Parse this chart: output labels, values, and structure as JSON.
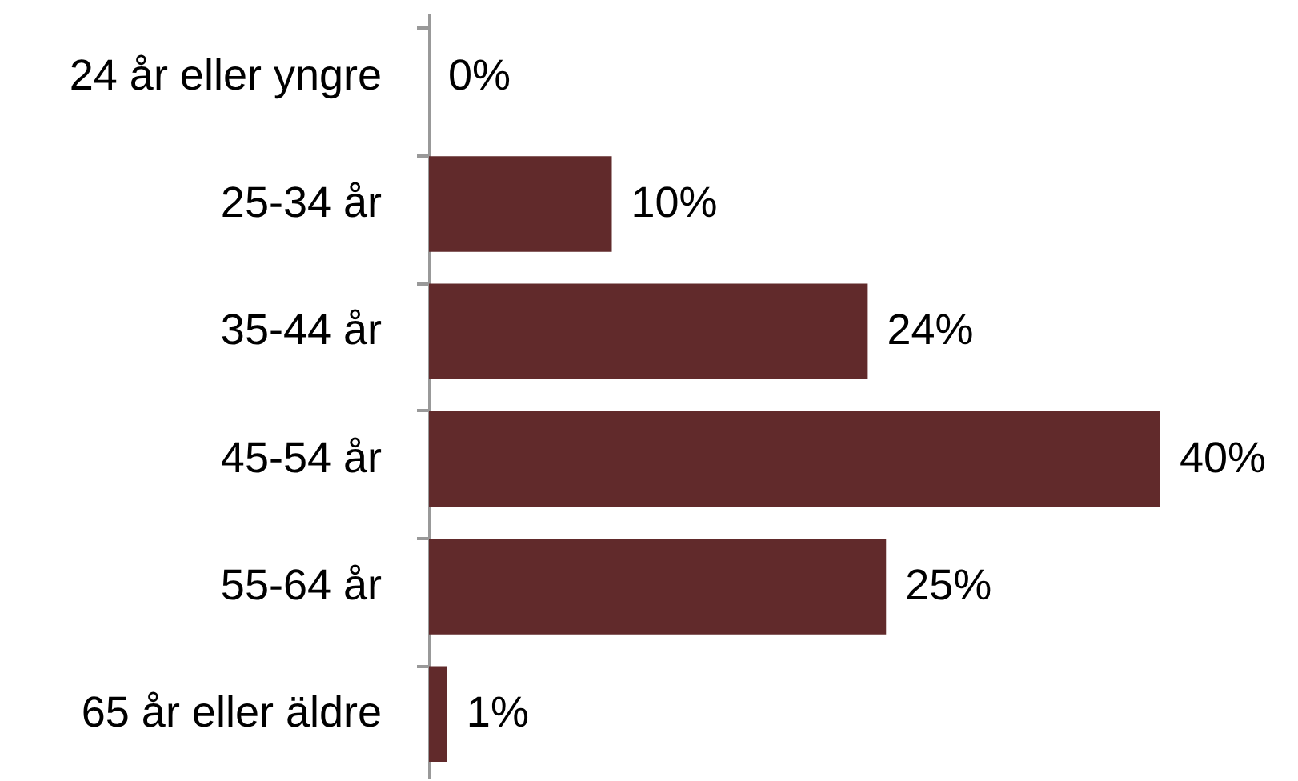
{
  "chart_data": {
    "type": "bar",
    "orientation": "horizontal",
    "categories": [
      "24 år eller yngre",
      "25-34 år",
      "35-44 år",
      "45-54 år",
      "55-64 år",
      "65 år eller äldre"
    ],
    "values": [
      0,
      10,
      24,
      40,
      25,
      1
    ],
    "value_labels": [
      "0%",
      "10%",
      "24%",
      "40%",
      "25%",
      "1%"
    ],
    "color": "#612a2b"
  }
}
